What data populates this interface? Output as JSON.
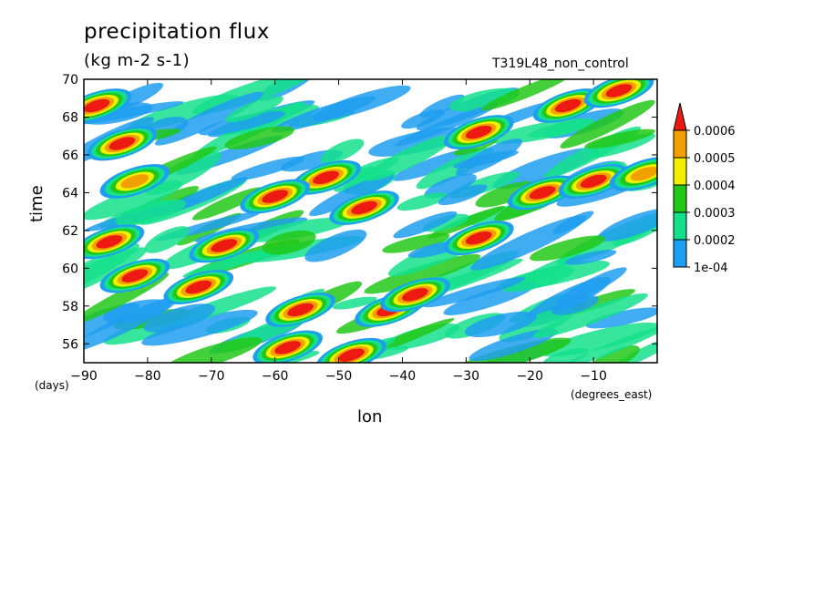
{
  "chart_data": {
    "type": "heatmap",
    "title": "precipitation flux",
    "units": "(kg m-2 s-1)",
    "run_label": "T319L48_non_control",
    "xlabel": "lon",
    "ylabel": "time",
    "x_units": "(degrees_east)",
    "y_units": "(days)",
    "xlim": [
      -90,
      0
    ],
    "ylim": [
      55,
      70
    ],
    "x_ticks": [
      -90,
      -80,
      -70,
      -60,
      -50,
      -40,
      -30,
      -20,
      -10
    ],
    "x_tick_labels": [
      "−90",
      "−80",
      "−70",
      "−60",
      "−50",
      "−40",
      "−30",
      "−20",
      "−10"
    ],
    "y_ticks": [
      56,
      58,
      60,
      62,
      64,
      66,
      68,
      70
    ],
    "y_tick_labels": [
      "56",
      "58",
      "60",
      "62",
      "64",
      "66",
      "68",
      "70"
    ],
    "colorbar": {
      "levels": [
        0.0001,
        0.0002,
        0.0003,
        0.0004,
        0.0005,
        0.0006
      ],
      "labels": [
        "1e-04",
        "0.0002",
        "0.0003",
        "0.0004",
        "0.0005",
        "0.0006"
      ],
      "colors": [
        "#ffffff",
        "#1e9ef0",
        "#14e08c",
        "#22c818",
        "#f0f000",
        "#f0a000",
        "#ec1a10"
      ],
      "extend": "max"
    },
    "features": [
      {
        "lon": -28,
        "time": 67.2,
        "value": 0.0008
      },
      {
        "lon": -14,
        "time": 68.6,
        "value": 0.0008
      },
      {
        "lon": -6,
        "time": 69.4,
        "value": 0.0007
      },
      {
        "lon": -52,
        "time": 64.8,
        "value": 0.0008
      },
      {
        "lon": -60,
        "time": 63.8,
        "value": 0.0007
      },
      {
        "lon": -46,
        "time": 63.2,
        "value": 0.0006
      },
      {
        "lon": -18,
        "time": 64.0,
        "value": 0.0008
      },
      {
        "lon": -10,
        "time": 64.6,
        "value": 0.0007
      },
      {
        "lon": -42,
        "time": 57.8,
        "value": 0.0008
      },
      {
        "lon": -38,
        "time": 58.6,
        "value": 0.0007
      },
      {
        "lon": -56,
        "time": 57.8,
        "value": 0.0007
      },
      {
        "lon": -82,
        "time": 59.6,
        "value": 0.0007
      },
      {
        "lon": -72,
        "time": 59.0,
        "value": 0.0006
      },
      {
        "lon": -88,
        "time": 68.6,
        "value": 0.0007
      },
      {
        "lon": -84,
        "time": 66.6,
        "value": 0.0006
      },
      {
        "lon": -28,
        "time": 61.6,
        "value": 0.0006
      },
      {
        "lon": -58,
        "time": 55.8,
        "value": 0.0006
      },
      {
        "lon": -68,
        "time": 61.2,
        "value": 0.0006
      },
      {
        "lon": -82,
        "time": 64.6,
        "value": 0.0005
      },
      {
        "lon": -86,
        "time": 61.4,
        "value": 0.0006
      },
      {
        "lon": -48,
        "time": 55.4,
        "value": 0.0006
      },
      {
        "lon": -2,
        "time": 65.0,
        "value": 0.0005
      }
    ]
  }
}
